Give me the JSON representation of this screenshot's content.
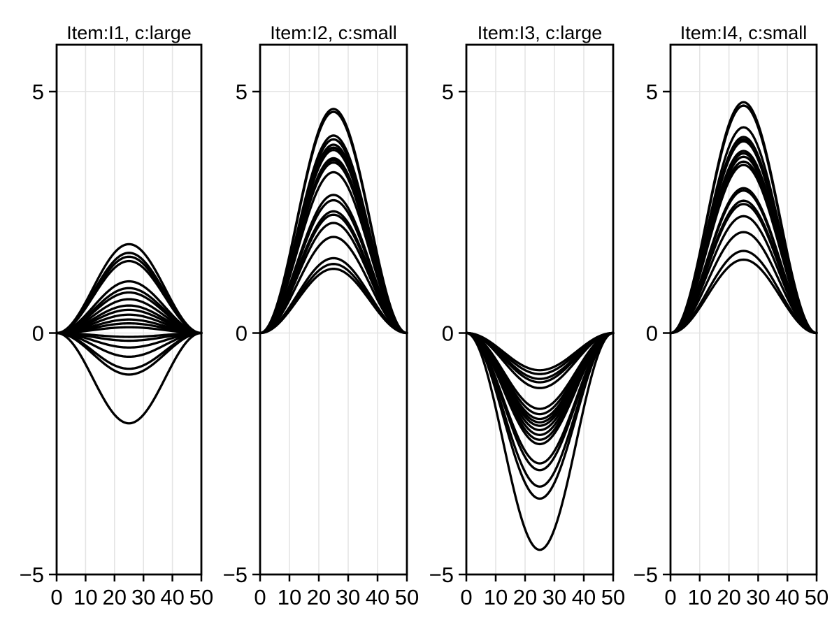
{
  "figure": {
    "background": "#ffffff",
    "frame_color": "#000000",
    "grid_color": "#e4e4e4",
    "curve_color": "#000000",
    "text_color": "#000000"
  },
  "chart_data": {
    "type": "line",
    "title": "",
    "subtitle": "",
    "legend": "none",
    "grid": "on",
    "layout": "1 row x 4 columns of panels, shared axis ranges",
    "curve_shape": "y = A * sin(pi*x/50)^2 ; smooth bump starting flat at (0,0), extremum at x=25, returning flat to (50,0)",
    "x": {
      "label": "",
      "min": 0,
      "max": 50,
      "ticks": [
        0,
        10,
        20,
        30,
        40,
        50
      ],
      "tick_labels": [
        "0",
        "10",
        "20",
        "30",
        "40",
        "50"
      ],
      "gridlines": [
        10,
        20,
        30,
        40
      ]
    },
    "y": {
      "label": "",
      "min": -5,
      "max": 5.97,
      "ticks": [
        5,
        0,
        -5
      ],
      "tick_labels": [
        "5",
        "0",
        "−5"
      ],
      "gridlines": [
        5,
        0
      ]
    },
    "panels": [
      {
        "title": "Item:I1, c:large",
        "amplitudes": [
          1.84,
          1.66,
          1.58,
          1.49,
          1.07,
          0.93,
          0.84,
          0.7,
          0.57,
          0.48,
          0.38,
          0.28,
          0.2,
          0.12,
          -0.08,
          -0.16,
          -0.3,
          -0.49,
          -0.74,
          -0.86,
          -1.87
        ]
      },
      {
        "title": "Item:I2, c:small",
        "amplitudes": [
          4.64,
          4.58,
          4.09,
          4.01,
          3.9,
          3.84,
          3.79,
          3.62,
          3.58,
          3.53,
          3.33,
          2.86,
          2.75,
          2.52,
          2.45,
          2.28,
          1.99,
          1.55,
          1.43,
          1.33
        ]
      },
      {
        "title": "Item:I3, c:large",
        "amplitudes": [
          -0.77,
          -0.85,
          -0.95,
          -1.02,
          -1.14,
          -1.57,
          -1.68,
          -1.78,
          -1.85,
          -1.92,
          -2.01,
          -2.11,
          -2.21,
          -2.3,
          -2.7,
          -2.84,
          -3.18,
          -3.43,
          -4.49
        ]
      },
      {
        "title": "Item:I4, c:small",
        "amplitudes": [
          4.78,
          4.71,
          4.26,
          4.06,
          4.01,
          3.97,
          3.77,
          3.72,
          3.65,
          3.55,
          3.48,
          3.0,
          2.95,
          2.74,
          2.67,
          2.42,
          2.09,
          1.7,
          1.52
        ]
      }
    ]
  }
}
